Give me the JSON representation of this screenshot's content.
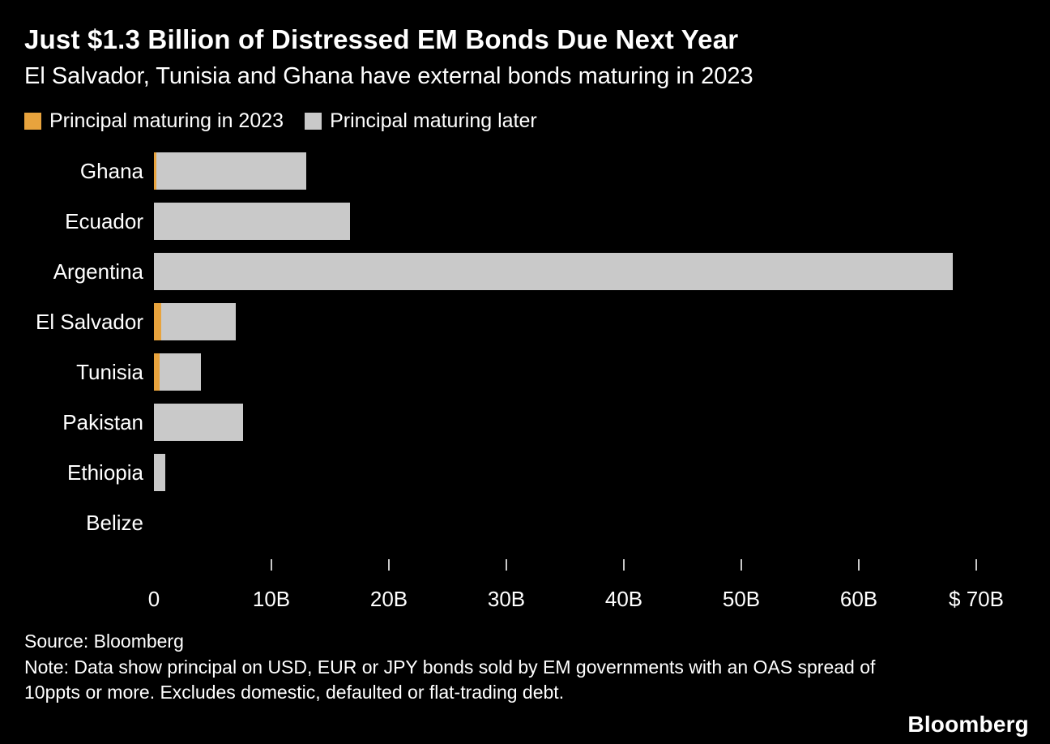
{
  "header": {
    "title": "Just $1.3 Billion of Distressed EM Bonds Due Next Year",
    "subtitle": "El Salvador, Tunisia and Ghana have external bonds maturing in 2023"
  },
  "colors": {
    "background": "#000000",
    "text": "#ffffff",
    "maturing_2023": "#e8a33d",
    "maturing_later": "#c9c9c9",
    "tick": "#c9c9c9"
  },
  "legend": [
    {
      "label": "Principal maturing in 2023",
      "color": "#e8a33d"
    },
    {
      "label": "Principal maturing later",
      "color": "#c9c9c9"
    }
  ],
  "chart_data": {
    "type": "bar",
    "orientation": "horizontal",
    "stacked": true,
    "unit": "USD billions",
    "categories": [
      "Ghana",
      "Ecuador",
      "Argentina",
      "El Salvador",
      "Tunisia",
      "Pakistan",
      "Ethiopia",
      "Belize"
    ],
    "series": [
      {
        "name": "Principal maturing in 2023",
        "color": "#e8a33d",
        "values": [
          0.2,
          0,
          0,
          0.6,
          0.5,
          0,
          0,
          0
        ]
      },
      {
        "name": "Principal maturing later",
        "color": "#c9c9c9",
        "values": [
          12.8,
          16.7,
          68,
          6.4,
          3.5,
          7.6,
          1,
          0
        ]
      }
    ],
    "xlim": [
      0,
      70
    ],
    "x_ticks": [
      0,
      10,
      20,
      30,
      40,
      50,
      60,
      70
    ],
    "x_tick_labels": [
      "0",
      "10B",
      "20B",
      "30B",
      "40B",
      "50B",
      "60B",
      "$ 70B"
    ],
    "grid": false,
    "legend_position": "top"
  },
  "footer": {
    "source": "Source: Bloomberg",
    "note": "Note: Data show principal on USD, EUR or JPY bonds sold by EM governments with an OAS spread of 10ppts or more. Excludes domestic, defaulted or flat-trading debt."
  },
  "branding": {
    "logo": "Bloomberg"
  }
}
